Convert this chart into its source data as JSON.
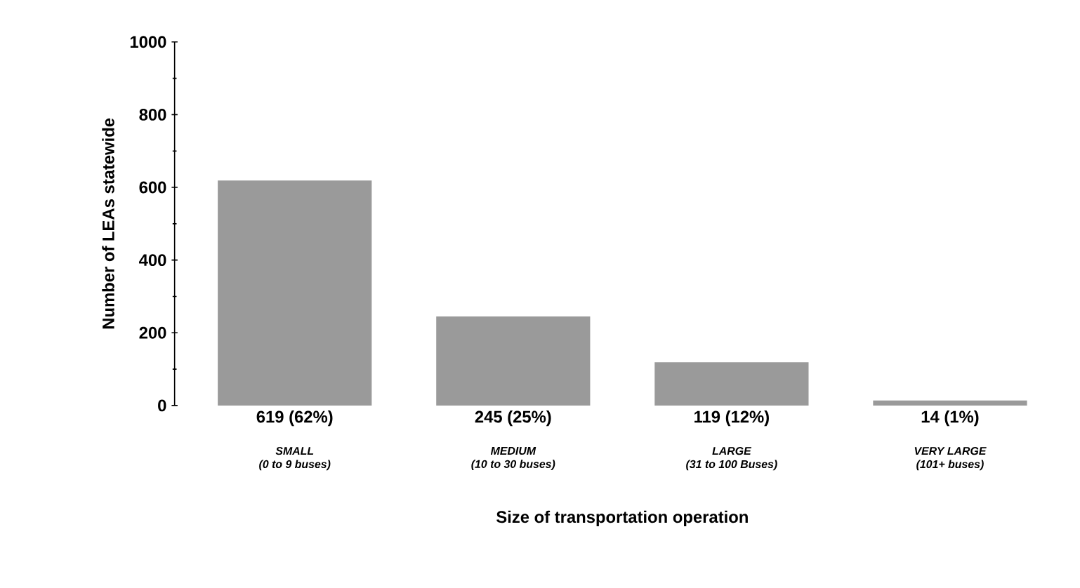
{
  "chart_data": {
    "type": "bar",
    "xlabel": "Size of transportation operation",
    "ylabel": "Number of LEAs statewide",
    "categories": [
      "SMALL\n(0 to 9 buses)",
      "MEDIUM\n(10 to 30 buses)",
      "LARGE\n(31 to 100 Buses)",
      "VERY LARGE\n(101+ buses)"
    ],
    "values": [
      619,
      245,
      119,
      14
    ],
    "value_labels": [
      "619  (62%)",
      "245  (25%)",
      "119  (12%)",
      "14  (1%)"
    ],
    "color": "#9a9a9a",
    "ylim": [
      0,
      1000
    ],
    "yticks": [
      0,
      200,
      400,
      600,
      800,
      1000
    ],
    "grid": false
  }
}
